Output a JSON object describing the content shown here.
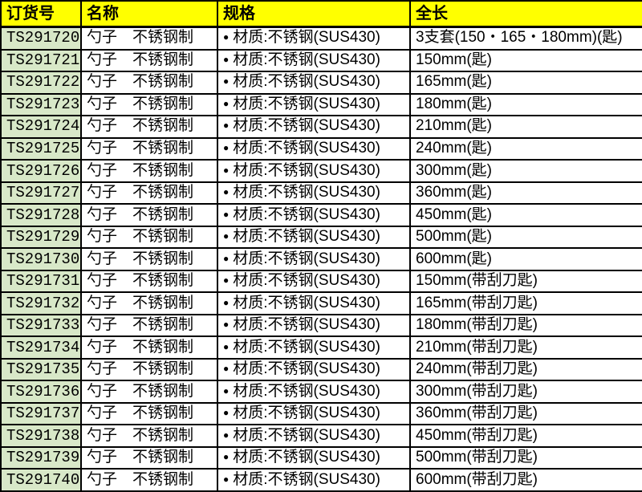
{
  "colors": {
    "header_bg": "#FFFF00",
    "order_column_bg": "#D8E8C8",
    "border": "#000000",
    "text": "#000000"
  },
  "table": {
    "columns": [
      {
        "key": "order_no",
        "label": "订货号"
      },
      {
        "key": "name",
        "label": "名称"
      },
      {
        "key": "spec",
        "label": "规格"
      },
      {
        "key": "length",
        "label": "全长"
      }
    ],
    "spec_bullet": "●",
    "rows": [
      {
        "order_no": "TS291720",
        "name": "勺子　不锈钢制",
        "spec": "材质:不锈钢(SUS430)",
        "length": "3支套(150・165・180mm)(匙)"
      },
      {
        "order_no": "TS291721",
        "name": "勺子　不锈钢制",
        "spec": "材质:不锈钢(SUS430)",
        "length": "150mm(匙)"
      },
      {
        "order_no": "TS291722",
        "name": "勺子　不锈钢制",
        "spec": "材质:不锈钢(SUS430)",
        "length": "165mm(匙)"
      },
      {
        "order_no": "TS291723",
        "name": "勺子　不锈钢制",
        "spec": "材质:不锈钢(SUS430)",
        "length": "180mm(匙)"
      },
      {
        "order_no": "TS291724",
        "name": "勺子　不锈钢制",
        "spec": "材质:不锈钢(SUS430)",
        "length": "210mm(匙)"
      },
      {
        "order_no": "TS291725",
        "name": "勺子　不锈钢制",
        "spec": "材质:不锈钢(SUS430)",
        "length": "240mm(匙)"
      },
      {
        "order_no": "TS291726",
        "name": "勺子　不锈钢制",
        "spec": "材质:不锈钢(SUS430)",
        "length": "300mm(匙)"
      },
      {
        "order_no": "TS291727",
        "name": "勺子　不锈钢制",
        "spec": "材质:不锈钢(SUS430)",
        "length": "360mm(匙)"
      },
      {
        "order_no": "TS291728",
        "name": "勺子　不锈钢制",
        "spec": "材质:不锈钢(SUS430)",
        "length": "450mm(匙)"
      },
      {
        "order_no": "TS291729",
        "name": "勺子　不锈钢制",
        "spec": "材质:不锈钢(SUS430)",
        "length": "500mm(匙)"
      },
      {
        "order_no": "TS291730",
        "name": "勺子　不锈钢制",
        "spec": "材质:不锈钢(SUS430)",
        "length": "600mm(匙)"
      },
      {
        "order_no": "TS291731",
        "name": "勺子　不锈钢制",
        "spec": "材质:不锈钢(SUS430)",
        "length": "150mm(带刮刀匙)"
      },
      {
        "order_no": "TS291732",
        "name": "勺子　不锈钢制",
        "spec": "材质:不锈钢(SUS430)",
        "length": "165mm(带刮刀匙)"
      },
      {
        "order_no": "TS291733",
        "name": "勺子　不锈钢制",
        "spec": "材质:不锈钢(SUS430)",
        "length": "180mm(带刮刀匙)"
      },
      {
        "order_no": "TS291734",
        "name": "勺子　不锈钢制",
        "spec": "材质:不锈钢(SUS430)",
        "length": "210mm(带刮刀匙)"
      },
      {
        "order_no": "TS291735",
        "name": "勺子　不锈钢制",
        "spec": "材质:不锈钢(SUS430)",
        "length": "240mm(带刮刀匙)"
      },
      {
        "order_no": "TS291736",
        "name": "勺子　不锈钢制",
        "spec": "材质:不锈钢(SUS430)",
        "length": "300mm(带刮刀匙)"
      },
      {
        "order_no": "TS291737",
        "name": "勺子　不锈钢制",
        "spec": "材质:不锈钢(SUS430)",
        "length": "360mm(带刮刀匙)"
      },
      {
        "order_no": "TS291738",
        "name": "勺子　不锈钢制",
        "spec": "材质:不锈钢(SUS430)",
        "length": "450mm(带刮刀匙)"
      },
      {
        "order_no": "TS291739",
        "name": "勺子　不锈钢制",
        "spec": "材质:不锈钢(SUS430)",
        "length": "500mm(带刮刀匙)"
      },
      {
        "order_no": "TS291740",
        "name": "勺子　不锈钢制",
        "spec": "材质:不锈钢(SUS430)",
        "length": "600mm(带刮刀匙)"
      }
    ]
  }
}
